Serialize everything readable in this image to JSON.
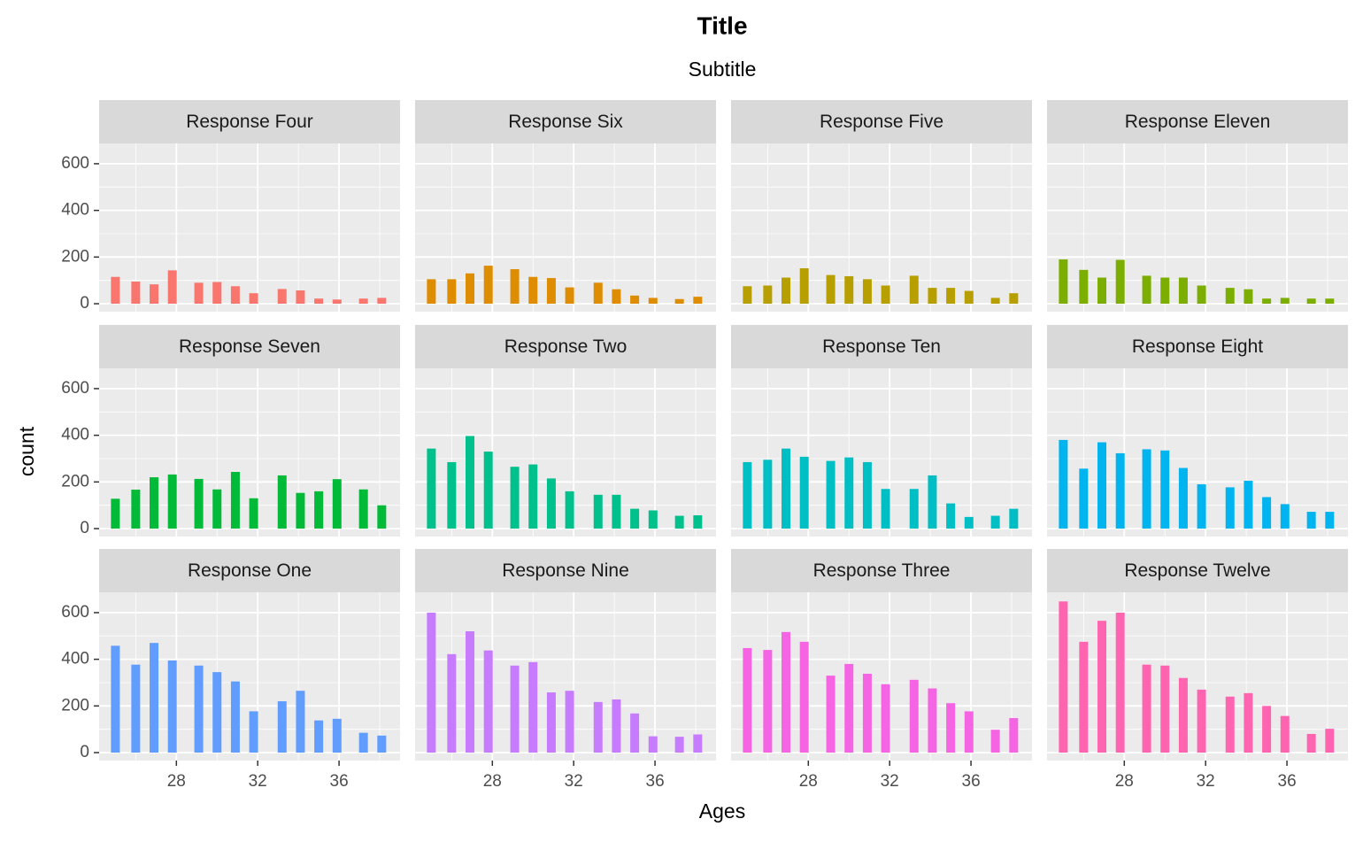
{
  "chart_data": {
    "type": "bar",
    "title": "Title",
    "subtitle": "Subtitle",
    "xlabel": "Ages",
    "ylabel": "count",
    "x": [
      25,
      26,
      26.9,
      27.8,
      29.1,
      30,
      30.9,
      31.8,
      33.2,
      34.1,
      35,
      35.9,
      37.2,
      38.1
    ],
    "xlim": [
      24.2,
      39.0
    ],
    "xticks": [
      28,
      32,
      36
    ],
    "x_minor_grid": [
      26,
      30,
      34,
      38
    ],
    "ylim": [
      -34,
      687
    ],
    "yticks": [
      0,
      200,
      400,
      600
    ],
    "y_minor_grid": [
      100,
      300,
      500
    ],
    "grid": true,
    "columns": 4,
    "facets": [
      {
        "name": "Response Four",
        "color": "#F8766D",
        "values": [
          115,
          95,
          83,
          143,
          90,
          93,
          75,
          45,
          63,
          57,
          22,
          18,
          22,
          25
        ]
      },
      {
        "name": "Response Six",
        "color": "#DE8C00",
        "values": [
          105,
          105,
          130,
          163,
          148,
          115,
          110,
          70,
          90,
          62,
          35,
          25,
          20,
          30
        ]
      },
      {
        "name": "Response Five",
        "color": "#B79F00",
        "values": [
          75,
          78,
          112,
          152,
          123,
          118,
          105,
          78,
          120,
          68,
          68,
          55,
          25,
          45
        ]
      },
      {
        "name": "Response Eleven",
        "color": "#7CAE00",
        "values": [
          190,
          145,
          112,
          188,
          120,
          112,
          112,
          78,
          68,
          62,
          22,
          25,
          22,
          22
        ]
      },
      {
        "name": "Response Seven",
        "color": "#00BA38",
        "values": [
          128,
          167,
          220,
          232,
          213,
          168,
          243,
          130,
          228,
          153,
          160,
          212,
          168,
          100
        ]
      },
      {
        "name": "Response Two",
        "color": "#00C08B",
        "values": [
          343,
          285,
          397,
          330,
          265,
          275,
          215,
          160,
          145,
          145,
          85,
          78,
          55,
          57
        ]
      },
      {
        "name": "Response Ten",
        "color": "#00BFC4",
        "values": [
          285,
          295,
          343,
          308,
          290,
          305,
          285,
          170,
          170,
          228,
          108,
          50,
          55,
          85
        ]
      },
      {
        "name": "Response Eight",
        "color": "#00B4F0",
        "values": [
          380,
          257,
          370,
          323,
          340,
          335,
          260,
          190,
          177,
          205,
          135,
          105,
          72,
          72
        ]
      },
      {
        "name": "Response One",
        "color": "#619CFF",
        "values": [
          458,
          377,
          470,
          395,
          373,
          345,
          305,
          177,
          220,
          265,
          138,
          145,
          85,
          73
        ]
      },
      {
        "name": "Response Nine",
        "color": "#C77CFF",
        "values": [
          600,
          422,
          520,
          438,
          373,
          388,
          258,
          265,
          217,
          228,
          168,
          70,
          68,
          78
        ]
      },
      {
        "name": "Response Three",
        "color": "#F564E3",
        "values": [
          448,
          440,
          517,
          475,
          330,
          380,
          338,
          293,
          312,
          275,
          212,
          177,
          98,
          148
        ]
      },
      {
        "name": "Response Twelve",
        "color": "#FF64B0",
        "values": [
          648,
          475,
          565,
          600,
          377,
          373,
          320,
          270,
          240,
          255,
          200,
          157,
          80,
          102
        ]
      }
    ]
  }
}
